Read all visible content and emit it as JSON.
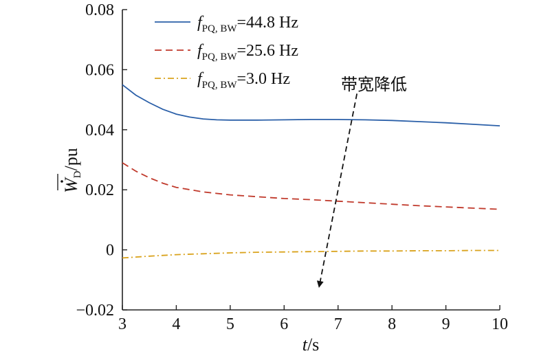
{
  "chart_data": {
    "type": "line",
    "xlabel": "t/s",
    "xlabel_italic": "t",
    "xlabel_rest": "/s",
    "ylabel": "W̄̇D/pu",
    "ylabel_main": "W",
    "ylabel_sub": "D",
    "ylabel_rest": "/pu",
    "xlim": [
      3,
      10
    ],
    "ylim": [
      -0.02,
      0.08
    ],
    "x_ticks": [
      "3",
      "4",
      "5",
      "6",
      "7",
      "8",
      "9",
      "10"
    ],
    "y_ticks": [
      "0.08",
      "0.06",
      "0.04",
      "0.02",
      "0",
      "−0.02"
    ],
    "y_tick_values": [
      0.08,
      0.06,
      0.04,
      0.02,
      0,
      -0.02
    ],
    "grid": false,
    "legend_position": "top-left",
    "series": [
      {
        "name": "fPQ, BW=44.8 Hz",
        "name_f": "f",
        "name_sub": "PQ, BW",
        "name_rest": "=44.8 Hz",
        "color": "#2a5fa8",
        "dash": "solid",
        "x": [
          3.0,
          3.25,
          3.5,
          3.75,
          4.0,
          4.25,
          4.5,
          4.75,
          5.0,
          5.5,
          6.0,
          6.5,
          7.0,
          7.5,
          8.0,
          8.5,
          9.0,
          9.5,
          10.0
        ],
        "y": [
          0.055,
          0.0515,
          0.049,
          0.0468,
          0.0452,
          0.0442,
          0.0436,
          0.0433,
          0.0432,
          0.0432,
          0.0433,
          0.0434,
          0.0434,
          0.0433,
          0.0431,
          0.0427,
          0.0423,
          0.0418,
          0.0413
        ]
      },
      {
        "name": "fPQ, BW=25.6 Hz",
        "name_f": "f",
        "name_sub": "PQ, BW",
        "name_rest": "=25.6 Hz",
        "color": "#c0392b",
        "dash": "dashed",
        "x": [
          3.0,
          3.25,
          3.5,
          3.75,
          4.0,
          4.5,
          5.0,
          5.5,
          6.0,
          6.5,
          7.0,
          7.5,
          8.0,
          8.5,
          9.0,
          9.5,
          10.0
        ],
        "y": [
          0.029,
          0.0262,
          0.024,
          0.0222,
          0.0208,
          0.0193,
          0.0183,
          0.0177,
          0.0171,
          0.0167,
          0.0162,
          0.0157,
          0.0152,
          0.0147,
          0.0143,
          0.0139,
          0.0135
        ]
      },
      {
        "name": "fPQ, BW=3.0 Hz",
        "name_f": "f",
        "name_sub": "PQ, BW",
        "name_rest": "=3.0 Hz",
        "color": "#d9a21b",
        "dash": "dashdot",
        "x": [
          3.0,
          3.5,
          4.0,
          4.5,
          5.0,
          5.5,
          6.0,
          6.5,
          7.0,
          7.5,
          8.0,
          8.5,
          9.0,
          9.5,
          10.0
        ],
        "y": [
          -0.0027,
          -0.0021,
          -0.0016,
          -0.0013,
          -0.001,
          -0.0008,
          -0.0007,
          -0.0006,
          -0.0005,
          -0.0004,
          -0.0004,
          -0.0003,
          -0.0003,
          -0.0002,
          -0.0002
        ]
      }
    ],
    "annotation": {
      "text": "带宽降低",
      "arrow_from": [
        7.35,
        0.052
      ],
      "arrow_to": [
        6.65,
        -0.0122
      ]
    }
  }
}
